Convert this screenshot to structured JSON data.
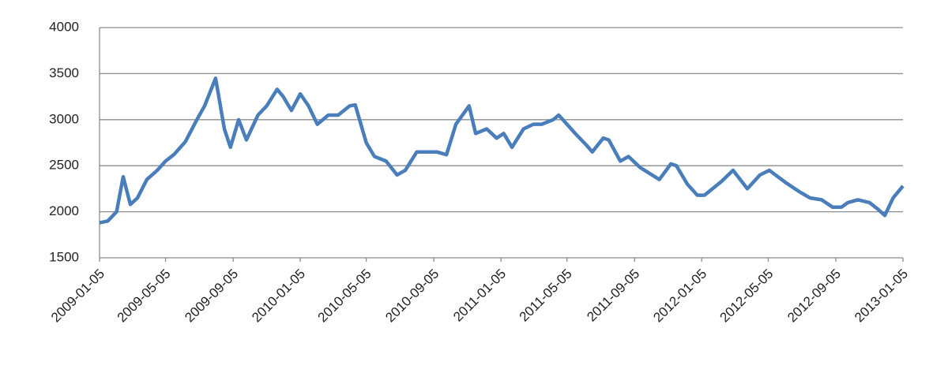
{
  "chart_data": {
    "type": "line",
    "x": [
      "2009-01-05",
      "2009-01-20",
      "2009-02-05",
      "2009-02-17",
      "2009-03-02",
      "2009-03-15",
      "2009-04-01",
      "2009-04-20",
      "2009-05-05",
      "2009-05-20",
      "2009-06-10",
      "2009-07-01",
      "2009-07-15",
      "2009-08-04",
      "2009-08-20",
      "2009-08-31",
      "2009-09-15",
      "2009-09-29",
      "2009-10-20",
      "2009-11-05",
      "2009-11-24",
      "2009-12-05",
      "2009-12-20",
      "2010-01-05",
      "2010-01-20",
      "2010-02-05",
      "2010-02-25",
      "2010-03-15",
      "2010-04-05",
      "2010-04-15",
      "2010-05-05",
      "2010-05-20",
      "2010-06-10",
      "2010-06-30",
      "2010-07-15",
      "2010-08-05",
      "2010-08-25",
      "2010-09-10",
      "2010-09-28",
      "2010-10-15",
      "2010-11-08",
      "2010-11-20",
      "2010-12-10",
      "2010-12-28",
      "2011-01-10",
      "2011-01-25",
      "2011-02-15",
      "2011-03-05",
      "2011-03-20",
      "2011-04-10",
      "2011-04-20",
      "2011-05-05",
      "2011-05-20",
      "2011-06-10",
      "2011-06-20",
      "2011-07-10",
      "2011-07-20",
      "2011-08-10",
      "2011-08-25",
      "2011-09-15",
      "2011-10-20",
      "2011-11-10",
      "2011-11-20",
      "2011-12-10",
      "2011-12-28",
      "2012-01-10",
      "2012-02-10",
      "2012-03-02",
      "2012-03-28",
      "2012-04-20",
      "2012-05-07",
      "2012-06-05",
      "2012-06-30",
      "2012-07-20",
      "2012-08-10",
      "2012-08-30",
      "2012-09-15",
      "2012-09-27",
      "2012-10-15",
      "2012-11-05",
      "2012-11-20",
      "2012-12-03",
      "2012-12-18",
      "2013-01-05"
    ],
    "series": [
      {
        "color": "#4a7ebb",
        "values": [
          1880,
          1900,
          2000,
          2380,
          2080,
          2150,
          2350,
          2450,
          2550,
          2620,
          2760,
          3000,
          3150,
          3450,
          2900,
          2700,
          3000,
          2780,
          3050,
          3150,
          3330,
          3250,
          3100,
          3280,
          3150,
          2950,
          3050,
          3050,
          3150,
          3160,
          2750,
          2600,
          2550,
          2400,
          2450,
          2650,
          2650,
          2650,
          2620,
          2950,
          3150,
          2850,
          2900,
          2800,
          2850,
          2700,
          2900,
          2950,
          2950,
          3000,
          3050,
          2950,
          2850,
          2720,
          2650,
          2800,
          2780,
          2550,
          2600,
          2480,
          2350,
          2520,
          2500,
          2300,
          2180,
          2180,
          2330,
          2450,
          2250,
          2400,
          2450,
          2320,
          2220,
          2150,
          2130,
          2050,
          2050,
          2100,
          2130,
          2100,
          2030,
          1960,
          2150,
          2280
        ]
      }
    ],
    "xlim": [
      "2009-01-05",
      "2013-01-05"
    ],
    "xticks": [
      "2009-01-05",
      "2009-05-05",
      "2009-09-05",
      "2010-01-05",
      "2010-05-05",
      "2010-09-05",
      "2011-01-05",
      "2011-05-05",
      "2011-09-05",
      "2012-01-05",
      "2012-05-05",
      "2012-09-05",
      "2013-01-05"
    ],
    "ylim": [
      1500,
      4000
    ],
    "yticks": [
      1500,
      2000,
      2500,
      3000,
      3500,
      4000
    ],
    "grid": true
  }
}
